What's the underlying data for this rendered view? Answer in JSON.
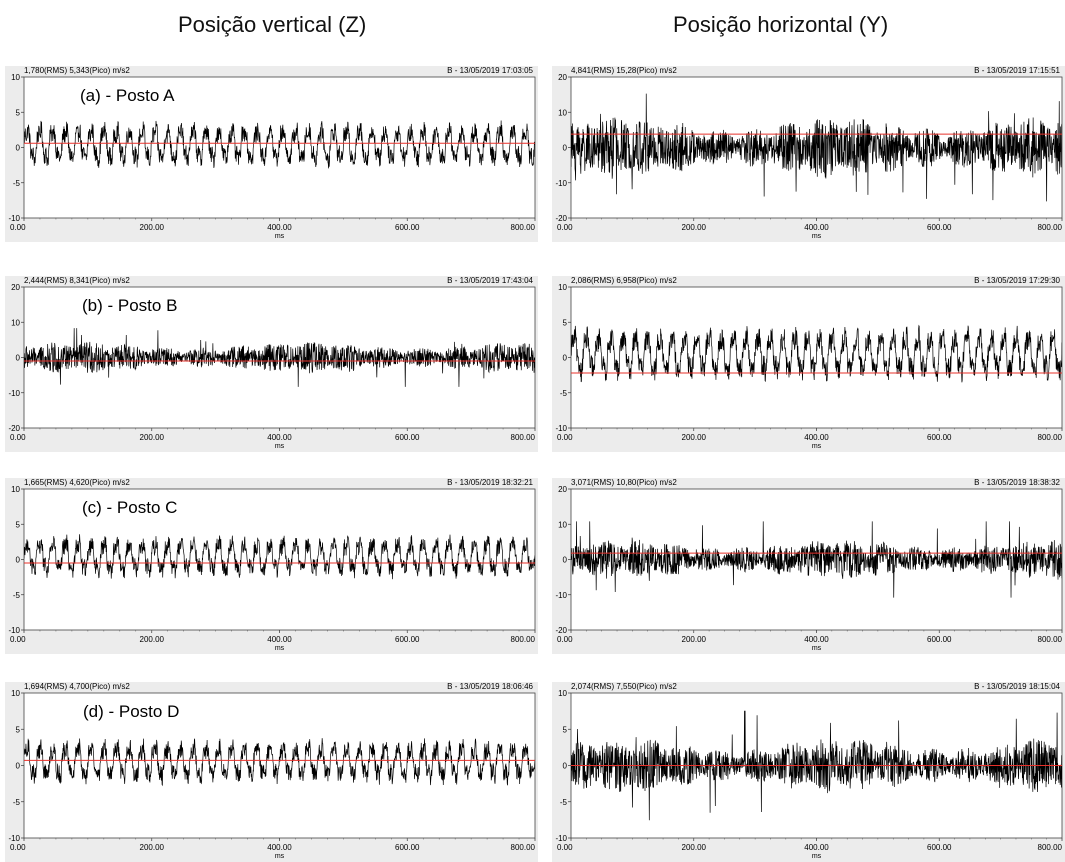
{
  "titles": {
    "left": "Posição vertical (Z)",
    "right": "Posição horizontal (Y)"
  },
  "chart_data": [
    {
      "type": "line",
      "tag": "(a) - Posto A",
      "header_left": "1,780(RMS) 5,343(Pico) m/s2",
      "header_right": "B - 13/05/2019 17:03:05",
      "xlabel": "ms",
      "xlim": [
        0,
        800
      ],
      "ylim": [
        -10,
        10
      ],
      "yticks": [
        10,
        5,
        0,
        -5,
        -10
      ],
      "xtick_labels": [
        "0.00",
        "200.00",
        "400.00",
        "600.00",
        "800.00"
      ],
      "rms": 1.78,
      "peak": 5.343,
      "mean_line": 0.6,
      "signal_offset": 0.4,
      "signal_kind": "periodic",
      "colors": {
        "signal": "#000000",
        "mean_line": "#e8302a",
        "grid": "#ececec"
      }
    },
    {
      "type": "line",
      "header_left": "4,841(RMS) 15,28(Pico) m/s2",
      "header_right": "B - 13/05/2019 17:15:51",
      "xlabel": "ms",
      "xlim": [
        0,
        800
      ],
      "ylim": [
        -20,
        20
      ],
      "yticks": [
        20,
        10,
        0,
        -10,
        -20
      ],
      "xtick_labels": [
        "0.00",
        "200.00",
        "400.00",
        "600.00",
        "800.00"
      ],
      "rms": 4.841,
      "peak": 15.28,
      "mean_line": 3.8,
      "signal_offset": 0.0,
      "signal_kind": "impulsive",
      "colors": {
        "signal": "#000000",
        "mean_line": "#e8302a",
        "grid": "#ececec"
      }
    },
    {
      "type": "line",
      "tag": "(b) - Posto B",
      "header_left": "2,444(RMS) 8,341(Pico) m/s2",
      "header_right": "B - 13/05/2019 17:43:04",
      "xlabel": "ms",
      "xlim": [
        0,
        800
      ],
      "ylim": [
        -20,
        20
      ],
      "yticks": [
        20,
        10,
        0,
        -10,
        -20
      ],
      "xtick_labels": [
        "0.00",
        "200.00",
        "400.00",
        "600.00",
        "800.00"
      ],
      "rms": 2.444,
      "peak": 8.341,
      "mean_line": -1.0,
      "signal_offset": 0.0,
      "signal_kind": "impulsive",
      "colors": {
        "signal": "#000000",
        "mean_line": "#e8302a",
        "grid": "#ececec"
      }
    },
    {
      "type": "line",
      "header_left": "2,086(RMS) 6,958(Pico) m/s2",
      "header_right": "B - 13/05/2019 17:29:30",
      "xlabel": "ms",
      "xlim": [
        0,
        800
      ],
      "ylim": [
        -10,
        10
      ],
      "yticks": [
        10,
        5,
        0,
        -5,
        -10
      ],
      "xtick_labels": [
        "0.00",
        "200.00",
        "400.00",
        "600.00",
        "800.00"
      ],
      "rms": 2.086,
      "peak": 6.958,
      "mean_line": -2.2,
      "signal_offset": 0.5,
      "signal_kind": "periodic",
      "colors": {
        "signal": "#000000",
        "mean_line": "#e8302a",
        "grid": "#ececec"
      }
    },
    {
      "type": "line",
      "tag": "(c) - Posto C",
      "header_left": "1,665(RMS) 4,620(Pico) m/s2",
      "header_right": "B - 13/05/2019 18:32:21",
      "xlabel": "ms",
      "xlim": [
        0,
        800
      ],
      "ylim": [
        -10,
        10
      ],
      "yticks": [
        10,
        5,
        0,
        -5,
        -10
      ],
      "xtick_labels": [
        "0.00",
        "200.00",
        "400.00",
        "600.00",
        "800.00"
      ],
      "rms": 1.665,
      "peak": 4.62,
      "mean_line": -0.5,
      "signal_offset": 0.4,
      "signal_kind": "periodic",
      "colors": {
        "signal": "#000000",
        "mean_line": "#e8302a",
        "grid": "#ececec"
      }
    },
    {
      "type": "line",
      "header_left": "3,071(RMS) 10,80(Pico) m/s2",
      "header_right": "B - 13/05/2019 18:38:32",
      "xlabel": "ms",
      "xlim": [
        0,
        800
      ],
      "ylim": [
        -20,
        20
      ],
      "yticks": [
        20,
        10,
        0,
        -10,
        -20
      ],
      "xtick_labels": [
        "0.00",
        "200.00",
        "400.00",
        "600.00",
        "800.00"
      ],
      "rms": 3.071,
      "peak": 10.8,
      "mean_line": 1.8,
      "signal_offset": 0.0,
      "signal_kind": "impulsive",
      "colors": {
        "signal": "#000000",
        "mean_line": "#e8302a",
        "grid": "#ececec"
      }
    },
    {
      "type": "line",
      "tag": "(d) - Posto D",
      "header_left": "1,694(RMS) 4,700(Pico) m/s2",
      "header_right": "B - 13/05/2019 18:06:46",
      "xlabel": "ms",
      "xlim": [
        0,
        800
      ],
      "ylim": [
        -10,
        10
      ],
      "yticks": [
        10,
        5,
        0,
        -5,
        -10
      ],
      "xtick_labels": [
        "0.00",
        "200.00",
        "400.00",
        "600.00",
        "800.00"
      ],
      "rms": 1.694,
      "peak": 4.7,
      "mean_line": 0.7,
      "signal_offset": 0.5,
      "signal_kind": "periodic",
      "colors": {
        "signal": "#000000",
        "mean_line": "#e8302a",
        "grid": "#ececec"
      }
    },
    {
      "type": "line",
      "header_left": "2,074(RMS) 7,550(Pico) m/s2",
      "header_right": "B - 13/05/2019 18:15:04",
      "xlabel": "ms",
      "xlim": [
        0,
        800
      ],
      "ylim": [
        -10,
        10
      ],
      "yticks": [
        10,
        5,
        0,
        -5,
        -10
      ],
      "xtick_labels": [
        "0.00",
        "200.00",
        "400.00",
        "600.00",
        "800.00"
      ],
      "rms": 2.074,
      "peak": 7.55,
      "mean_line": 0.0,
      "signal_offset": 0.0,
      "signal_kind": "impulsive",
      "colors": {
        "signal": "#000000",
        "mean_line": "#e8302a",
        "grid": "#ececec"
      }
    }
  ]
}
